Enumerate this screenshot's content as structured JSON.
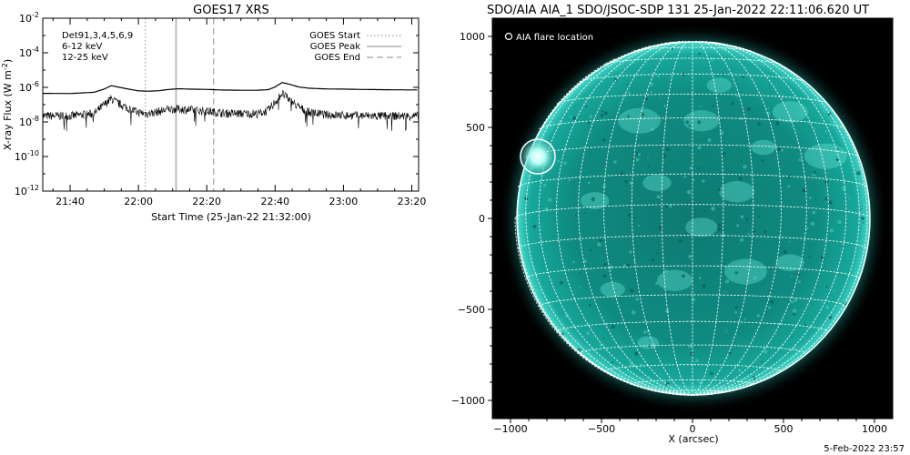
{
  "chart_data": [
    {
      "type": "line",
      "title": "GOES17 XRS",
      "xlabel": "Start Time (25-Jan-22 21:32:00)",
      "ylabel": "X-ray Flux (W m",
      "ylabel_exp": "-2",
      "ylabel_close": ")",
      "xlim": [
        "21:32",
        "23:22"
      ],
      "ylim": [
        1e-12,
        0.01
      ],
      "y_scale": "log",
      "x_ticks": [
        "21:40",
        "22:00",
        "22:20",
        "22:40",
        "23:00",
        "23:20"
      ],
      "y_ticks": [
        {
          "base": "10",
          "exp": "-2",
          "value": 0.01
        },
        {
          "base": "10",
          "exp": "-4",
          "value": 0.0001
        },
        {
          "base": "10",
          "exp": "-6",
          "value": 1e-06
        },
        {
          "base": "10",
          "exp": "-8",
          "value": 1e-08
        },
        {
          "base": "10",
          "exp": "-10",
          "value": 1e-10
        },
        {
          "base": "10",
          "exp": "-12",
          "value": 1e-12
        }
      ],
      "annotations": {
        "det": "Det91,3,4,5,6,9",
        "band_low": "6-12 keV",
        "band_high": "12-25 keV",
        "band_low_color": "#ee00ee",
        "band_high_color": "#00dd00"
      },
      "legend": {
        "position": "top-right",
        "entries": [
          "GOES Start",
          "GOES Peak",
          "GOES End"
        ]
      },
      "event_lines": [
        {
          "name": "GOES Start",
          "time": "22:02",
          "style": "dotted",
          "color": "#aaaaaa"
        },
        {
          "name": "GOES Peak",
          "time": "22:11",
          "style": "solid",
          "color": "#aaaaaa"
        },
        {
          "name": "GOES End",
          "time": "22:22",
          "style": "dashed",
          "color": "#aaaaaa"
        }
      ],
      "series": [
        {
          "name": "",
          "color": "#000000",
          "x": [
            "21:32",
            "21:40",
            "21:47",
            "21:50",
            "21:52",
            "21:54",
            "21:57",
            "22:00",
            "22:03",
            "22:06",
            "22:09",
            "22:12",
            "22:15",
            "22:20",
            "22:25",
            "22:30",
            "22:35",
            "22:38",
            "22:40",
            "22:42",
            "22:44",
            "22:47",
            "22:50",
            "22:55",
            "23:00",
            "23:05",
            "23:10",
            "23:15",
            "23:22"
          ],
          "y": [
            4.5e-07,
            4.4e-07,
            5.2e-07,
            8e-07,
            1.25e-06,
            1.05e-06,
            8e-07,
            6.3e-07,
            6e-07,
            6.4e-07,
            7.6e-07,
            8.3e-07,
            7.9e-07,
            7.6e-07,
            7e-07,
            6.8e-07,
            6.8e-07,
            7.4e-07,
            1.05e-06,
            1.9e-06,
            1.55e-06,
            1.05e-06,
            8.9e-07,
            8.1e-07,
            7.9e-07,
            7.6e-07,
            7.4e-07,
            7.2e-07,
            7.1e-07
          ]
        },
        {
          "name": "",
          "color": "#000000",
          "noisy": true,
          "x": [
            "21:32",
            "21:40",
            "21:47",
            "21:50",
            "21:52",
            "21:54",
            "21:57",
            "22:00",
            "22:03",
            "22:06",
            "22:09",
            "22:12",
            "22:15",
            "22:20",
            "22:25",
            "22:30",
            "22:35",
            "22:38",
            "22:40",
            "22:42",
            "22:44",
            "22:47",
            "22:50",
            "22:55",
            "23:00",
            "23:05",
            "23:10",
            "23:15",
            "23:22"
          ],
          "y": [
            2.2e-08,
            2.2e-08,
            3e-08,
            1e-07,
            2.2e-07,
            1.2e-07,
            6e-08,
            3.5e-08,
            3e-08,
            4e-08,
            5.5e-08,
            5.5e-08,
            5e-08,
            4.2e-08,
            3.2e-08,
            3e-08,
            3e-08,
            4.5e-08,
            1.4e-07,
            4.5e-07,
            2e-07,
            7e-08,
            3.5e-08,
            2.6e-08,
            2.4e-08,
            2.3e-08,
            2.2e-08,
            2.2e-08,
            2.2e-08
          ]
        }
      ]
    },
    {
      "type": "image",
      "title": "SDO/AIA AIA_1 SDO/JSOC-SDP 131 25-Jan-2022 22:11:06.620 UT",
      "xlabel": "X (arcsec)",
      "ylabel": "",
      "xlim": [
        -1100,
        1100
      ],
      "ylim": [
        -1100,
        1100
      ],
      "x_ticks": [
        -1000,
        -500,
        0,
        500,
        1000
      ],
      "x_tick_labels": [
        "−1000",
        "−500",
        "0",
        "500",
        "1000"
      ],
      "y_ticks": [
        1000,
        500,
        0,
        -500,
        -1000
      ],
      "y_tick_labels": [
        "1000",
        "500",
        "0",
        "−500",
        "−1000"
      ],
      "solar_radius_arcsec": 975,
      "grid": true,
      "legend": {
        "position": "top-left",
        "entries": [
          "AIA flare location"
        ]
      },
      "flare_location": {
        "x": -850,
        "y": 340
      },
      "colors": {
        "disk": "#0b8f83",
        "limb": "#6ef2e4",
        "background": "#000000",
        "grid": "#ffffff"
      }
    }
  ],
  "footer": {
    "timestamp": "5-Feb-2022 23:57"
  }
}
